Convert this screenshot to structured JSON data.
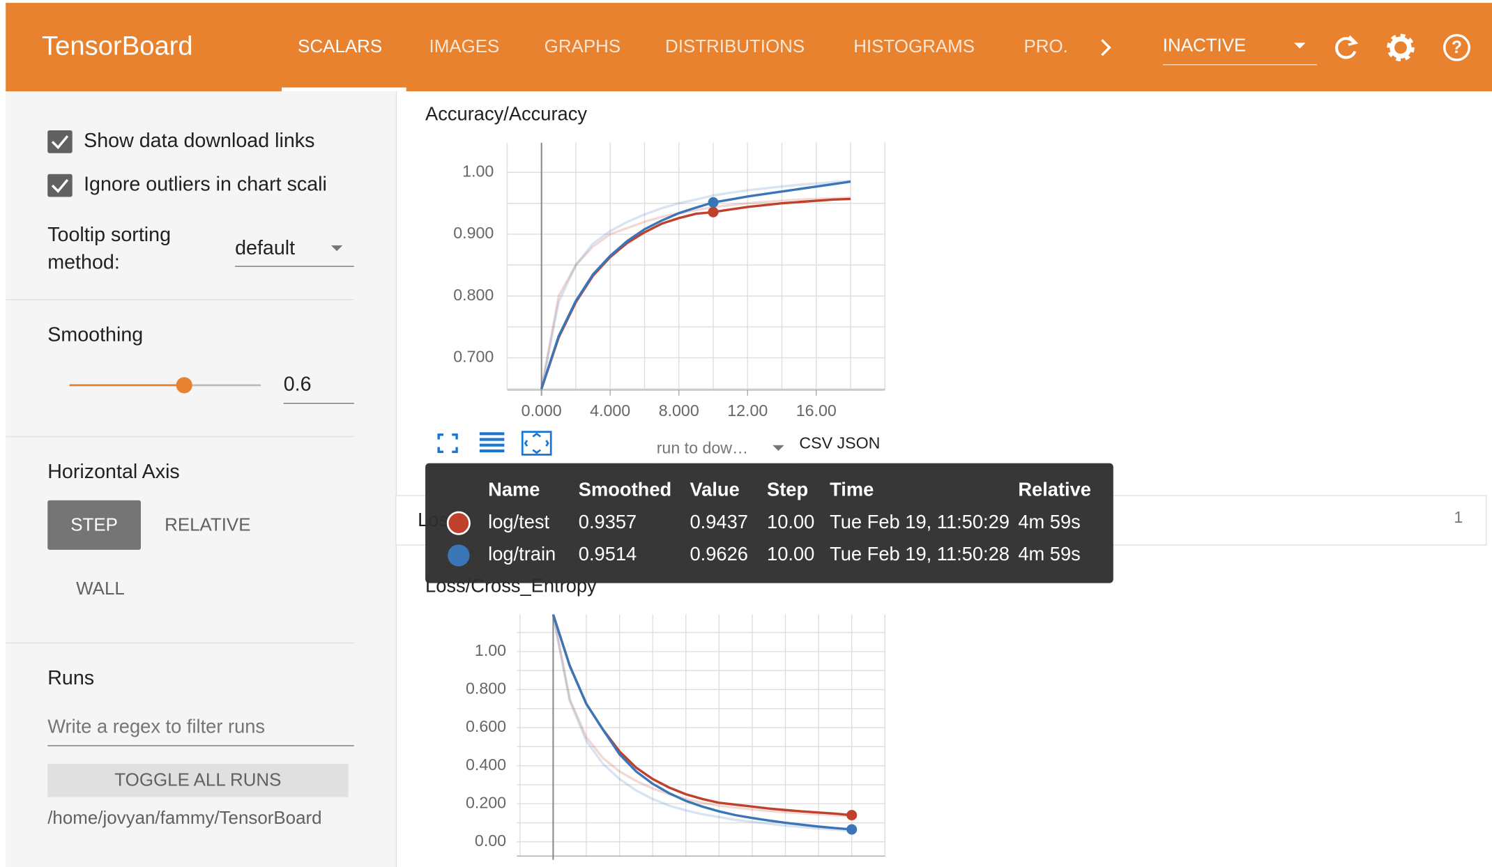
{
  "header": {
    "title": "TensorBoard",
    "tabs": [
      "SCALARS",
      "IMAGES",
      "GRAPHS",
      "DISTRIBUTIONS",
      "HISTOGRAMS",
      "PRO."
    ],
    "status": "INACTIVE"
  },
  "sidebar": {
    "checkboxes": [
      "Show data download links",
      "Ignore outliers in chart scali"
    ],
    "tooltip_sorting_label": [
      "Tooltip sorting",
      "method:"
    ],
    "tooltip_sorting_value": "default",
    "smoothing_label": "Smoothing",
    "smoothing_value": 0.6,
    "horizontal_axis_label": "Horizontal Axis",
    "horizontal_axis_options": [
      "STEP",
      "RELATIVE",
      "WALL"
    ],
    "runs_label": "Runs",
    "runs_filter_placeholder": "Write a regex to filter runs",
    "toggle_button": "TOGGLE ALL RUNS",
    "logdir": "/home/jovyan/fammy/TensorBoard"
  },
  "charts": [
    {
      "type": "line",
      "title": "Accuracy/Accuracy",
      "steps": [
        0,
        1,
        2,
        3,
        4,
        5,
        6,
        7,
        8,
        9,
        10,
        11,
        12,
        13,
        14,
        15,
        16,
        17,
        18
      ],
      "xlim": [
        -2,
        20
      ],
      "ylim": [
        0.648,
        1.048
      ],
      "xticks": [
        {
          "value": 0,
          "label": "0.000"
        },
        {
          "value": 4,
          "label": "4.000"
        },
        {
          "value": 8,
          "label": "8.000"
        },
        {
          "value": 12,
          "label": "12.00"
        },
        {
          "value": 16,
          "label": "16.00"
        }
      ],
      "yticks": [
        {
          "value": 0.7,
          "label": "0.700"
        },
        {
          "value": 0.8,
          "label": "0.800"
        },
        {
          "value": 0.9,
          "label": "0.900"
        },
        {
          "value": 1.0,
          "label": "1.00"
        }
      ],
      "xgrid": [
        -2,
        0,
        2,
        4,
        6,
        8,
        10,
        12,
        14,
        16,
        18,
        20
      ],
      "ygrid": [
        0.65,
        0.7,
        0.75,
        0.8,
        0.85,
        0.9,
        0.95,
        1.0
      ],
      "marker_step": 10,
      "series": [
        {
          "name": "log/test",
          "color": "#c0412b",
          "values": [
            0.65,
            0.733,
            0.79,
            0.833,
            0.863,
            0.886,
            0.903,
            0.917,
            0.926,
            0.933,
            0.9357,
            0.94,
            0.944,
            0.947,
            0.95,
            0.952,
            0.954,
            0.956,
            0.957
          ],
          "raw": [
            0.65,
            0.8,
            0.85,
            0.88,
            0.9,
            0.91,
            0.92,
            0.928,
            0.934,
            0.939,
            0.9437,
            0.947,
            0.95,
            0.952,
            0.954,
            0.956,
            0.957,
            0.958,
            0.959
          ]
        },
        {
          "name": "log/train",
          "color": "#3a76b7",
          "values": [
            0.65,
            0.735,
            0.792,
            0.835,
            0.865,
            0.889,
            0.908,
            0.922,
            0.934,
            0.943,
            0.9514,
            0.956,
            0.961,
            0.965,
            0.969,
            0.973,
            0.977,
            0.981,
            0.985
          ],
          "raw": [
            0.65,
            0.79,
            0.85,
            0.885,
            0.905,
            0.92,
            0.932,
            0.942,
            0.95,
            0.956,
            0.9626,
            0.967,
            0.971,
            0.974,
            0.977,
            0.98,
            0.982,
            0.984,
            0.986
          ]
        }
      ]
    },
    {
      "type": "line",
      "title": "Loss/Cross_Entropy",
      "steps": [
        0,
        1,
        2,
        3,
        4,
        5,
        6,
        7,
        8,
        9,
        10,
        11,
        12,
        13,
        14,
        15,
        16,
        17,
        18
      ],
      "xlim": [
        -2.2,
        20
      ],
      "ylim": [
        -0.075,
        1.195
      ],
      "yticks": [
        {
          "value": 0,
          "label": "0.00"
        },
        {
          "value": 0.2,
          "label": "0.200"
        },
        {
          "value": 0.4,
          "label": "0.400"
        },
        {
          "value": 0.6,
          "label": "0.600"
        },
        {
          "value": 0.8,
          "label": "0.800"
        },
        {
          "value": 1.0,
          "label": "1.00"
        }
      ],
      "xgrid": [
        -2,
        0,
        2,
        4,
        6,
        8,
        10,
        12,
        14,
        16,
        18,
        20
      ],
      "ygrid": [
        0,
        0.1,
        0.2,
        0.3,
        0.4,
        0.5,
        0.6,
        0.7,
        0.8,
        0.9,
        1.0,
        1.1
      ],
      "marker_step": 18,
      "series": [
        {
          "name": "log/test",
          "color": "#c0412b",
          "values": [
            1.195,
            0.925,
            0.725,
            0.59,
            0.475,
            0.39,
            0.33,
            0.285,
            0.25,
            0.225,
            0.205,
            0.195,
            0.185,
            0.175,
            0.167,
            0.16,
            0.154,
            0.148,
            0.14
          ],
          "raw": [
            1.195,
            0.75,
            0.55,
            0.44,
            0.37,
            0.32,
            0.28,
            0.25,
            0.225,
            0.205,
            0.19,
            0.18,
            0.17,
            0.162,
            0.155,
            0.15,
            0.145,
            0.14,
            0.135
          ]
        },
        {
          "name": "log/train",
          "color": "#3a76b7",
          "values": [
            1.195,
            0.925,
            0.725,
            0.59,
            0.46,
            0.37,
            0.305,
            0.255,
            0.215,
            0.185,
            0.16,
            0.14,
            0.125,
            0.112,
            0.1,
            0.09,
            0.08,
            0.072,
            0.065
          ],
          "raw": [
            1.195,
            0.74,
            0.53,
            0.41,
            0.33,
            0.27,
            0.225,
            0.19,
            0.165,
            0.145,
            0.13,
            0.115,
            0.105,
            0.095,
            0.085,
            0.078,
            0.07,
            0.064,
            0.058
          ]
        }
      ]
    }
  ],
  "chart_toolbar": {
    "run_select": "run to dow…",
    "downloads": "CSV JSON"
  },
  "collapsed_group": {
    "title": "Loss",
    "count": 1
  },
  "tooltip": {
    "columns": [
      "Name",
      "Smoothed",
      "Value",
      "Step",
      "Time",
      "Relative"
    ],
    "rows": [
      [
        "0.9357",
        "0.9437",
        "10.00",
        "Tue Feb 19, 11:50:29",
        "4m 59s"
      ],
      [
        "0.9514",
        "0.9626",
        "10.00",
        "Tue Feb 19, 11:50:28",
        "4m 59s"
      ]
    ]
  }
}
